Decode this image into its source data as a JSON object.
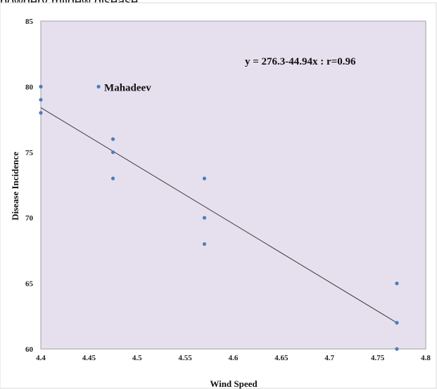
{
  "caption": "powdery mildew disease.",
  "chart_data": {
    "type": "scatter",
    "xlabel": "Wind Speed",
    "ylabel": "Disease Incidence",
    "xlim": [
      4.4,
      4.8
    ],
    "ylim": [
      60,
      85
    ],
    "x_ticks": [
      "4.4",
      "4.45",
      "4.5",
      "4.55",
      "4.6",
      "4.65",
      "4.7",
      "4.75",
      "4.8"
    ],
    "y_ticks": [
      "60",
      "65",
      "70",
      "75",
      "80",
      "85"
    ],
    "grid": false,
    "points": [
      {
        "x": 4.4,
        "y": 80
      },
      {
        "x": 4.4,
        "y": 79
      },
      {
        "x": 4.4,
        "y": 78
      },
      {
        "x": 4.46,
        "y": 80,
        "label": "Mahadeev"
      },
      {
        "x": 4.475,
        "y": 76
      },
      {
        "x": 4.475,
        "y": 75
      },
      {
        "x": 4.475,
        "y": 73
      },
      {
        "x": 4.57,
        "y": 73
      },
      {
        "x": 4.57,
        "y": 70
      },
      {
        "x": 4.57,
        "y": 68
      },
      {
        "x": 4.77,
        "y": 65
      },
      {
        "x": 4.77,
        "y": 62
      },
      {
        "x": 4.77,
        "y": 60
      }
    ],
    "trendline": {
      "x": [
        4.4,
        4.77
      ],
      "y": [
        78.4,
        62.0
      ]
    },
    "equation_text": "y = 276.3-44.94x :   r=0.96",
    "colors": {
      "plot_bg": "#e6e0ee",
      "point": "#4a7ebb",
      "line": "#3a3a3a",
      "border": "#a0a0a0"
    }
  }
}
